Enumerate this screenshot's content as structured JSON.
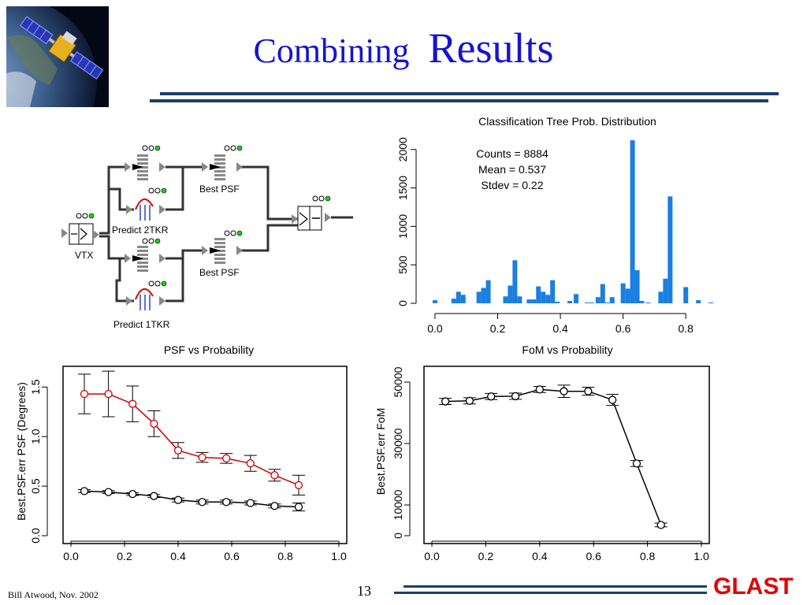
{
  "slide": {
    "title_word1": "Combining",
    "title_word2": "Results",
    "footer_left": "Bill Atwood,  Nov. 2002",
    "page_number": "13",
    "brand": "GLAST",
    "title_color": "#1414d0",
    "rule_color": "#1c3f66",
    "brand_color": "#e00000"
  },
  "diagram": {
    "labels": {
      "vtx": "VTX",
      "predict_2tkr": "Predict 2TKR",
      "predict_1tkr": "Predict 1TKR",
      "best_psf_top": "Best PSF",
      "best_psf_bottom": "Best PSF"
    }
  },
  "chart_data": [
    {
      "type": "bar",
      "title": "Classification Tree Prob. Distribution",
      "xlabel": "",
      "ylabel": "",
      "xlim": [
        -0.03,
        0.9
      ],
      "ylim": [
        0,
        2100
      ],
      "xticks": [
        "0.0",
        "0.2",
        "0.4",
        "0.6",
        "0.8"
      ],
      "yticks": [
        "0",
        "500",
        "1000",
        "1500",
        "2000"
      ],
      "annotations": [
        "Counts = 8884",
        "Mean = 0.537",
        "Stdev = 0.22"
      ],
      "color": "#1a7fe0",
      "x": [
        0.0,
        0.06,
        0.075,
        0.09,
        0.14,
        0.155,
        0.17,
        0.225,
        0.24,
        0.255,
        0.27,
        0.3,
        0.315,
        0.33,
        0.345,
        0.36,
        0.375,
        0.39,
        0.43,
        0.45,
        0.485,
        0.5,
        0.52,
        0.535,
        0.55,
        0.565,
        0.6,
        0.615,
        0.63,
        0.645,
        0.66,
        0.68,
        0.72,
        0.735,
        0.75,
        0.8,
        0.84,
        0.88
      ],
      "values": [
        40,
        60,
        150,
        110,
        150,
        200,
        300,
        90,
        230,
        560,
        90,
        50,
        50,
        220,
        150,
        110,
        300,
        20,
        30,
        120,
        10,
        10,
        80,
        250,
        10,
        80,
        260,
        190,
        2120,
        430,
        30,
        10,
        150,
        320,
        1390,
        210,
        40,
        10
      ]
    },
    {
      "type": "line",
      "title": "PSF vs Probability",
      "xlabel": "",
      "ylabel": "Best.PSF.err  PSF (Degrees)",
      "xlim": [
        0.0,
        1.0
      ],
      "ylim": [
        0.0,
        1.55
      ],
      "xticks": [
        "0.0",
        "0.2",
        "0.4",
        "0.6",
        "0.8",
        "1.0"
      ],
      "yticks": [
        "0.0",
        "0.5",
        "1.0",
        "1.5"
      ],
      "x": [
        0.05,
        0.14,
        0.23,
        0.31,
        0.4,
        0.49,
        0.58,
        0.67,
        0.76,
        0.85
      ],
      "series": [
        {
          "color": "#cc0000",
          "values": [
            1.43,
            1.43,
            1.33,
            1.13,
            0.86,
            0.79,
            0.78,
            0.73,
            0.61,
            0.51
          ],
          "err": [
            0.2,
            0.23,
            0.18,
            0.13,
            0.08,
            0.05,
            0.05,
            0.08,
            0.06,
            0.1
          ]
        },
        {
          "color": "#000000",
          "values": [
            0.45,
            0.44,
            0.42,
            0.4,
            0.36,
            0.34,
            0.34,
            0.33,
            0.3,
            0.29
          ],
          "err": [
            0.015,
            0.015,
            0.015,
            0.015,
            0.02,
            0.02,
            0.02,
            0.02,
            0.02,
            0.04
          ]
        }
      ]
    },
    {
      "type": "line",
      "title": "FoM vs Probability",
      "xlabel": "",
      "ylabel": "Best.PSF.err  FoM",
      "xlim": [
        0.0,
        1.0
      ],
      "ylim": [
        0,
        50000
      ],
      "xticks": [
        "0.0",
        "0.2",
        "0.4",
        "0.6",
        "0.8",
        "1.0"
      ],
      "yticks": [
        "0",
        "10000",
        "30000",
        "50000"
      ],
      "x": [
        0.05,
        0.14,
        0.22,
        0.31,
        0.4,
        0.49,
        0.58,
        0.67,
        0.76,
        0.85
      ],
      "series": [
        {
          "color": "#000000",
          "values": [
            43700,
            43900,
            45300,
            45400,
            47600,
            47000,
            47000,
            44200,
            23500,
            3500
          ],
          "err": [
            1000,
            1000,
            1000,
            1000,
            1000,
            2000,
            1300,
            1800,
            1000,
            600
          ]
        }
      ]
    }
  ]
}
